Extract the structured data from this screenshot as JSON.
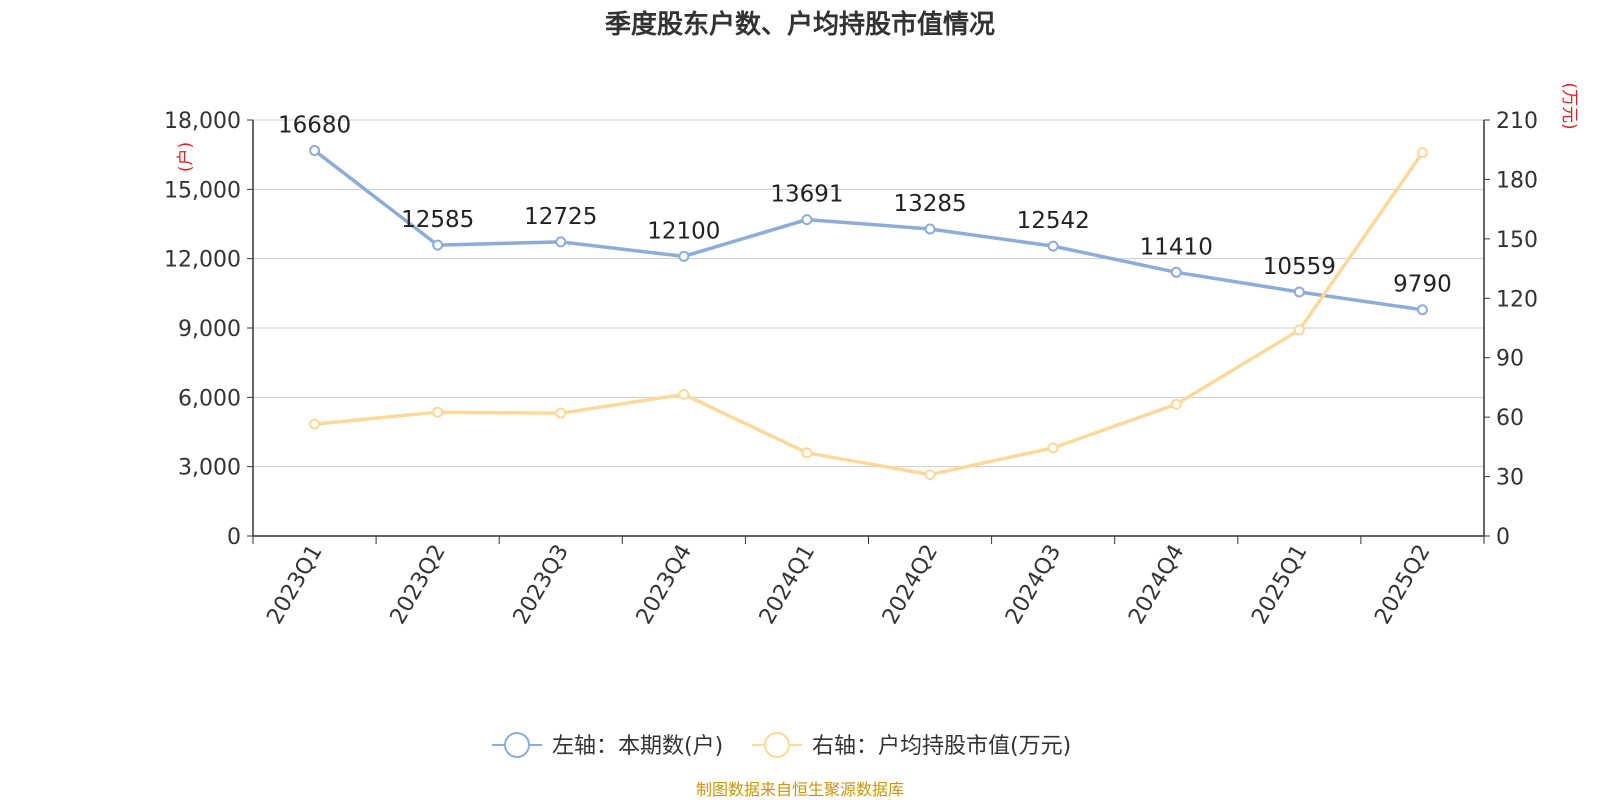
{
  "chart_data": {
    "type": "line",
    "title": "季度股东户数、户均持股市值情况",
    "categories": [
      "2023Q1",
      "2023Q2",
      "2023Q3",
      "2023Q4",
      "2024Q1",
      "2024Q2",
      "2024Q3",
      "2024Q4",
      "2025Q1",
      "2025Q2"
    ],
    "left_axis": {
      "unit_label": "(户)",
      "ylim": [
        0,
        18000
      ],
      "ticks": [
        "0",
        "3,000",
        "6,000",
        "9,000",
        "12,000",
        "15,000",
        "18,000"
      ]
    },
    "right_axis": {
      "unit_label": "(万元)",
      "ylim": [
        0,
        210
      ],
      "ticks": [
        "0",
        "30",
        "60",
        "90",
        "120",
        "150",
        "180",
        "210"
      ]
    },
    "series": [
      {
        "name": "左轴：本期数(户)",
        "axis": "left",
        "color": "#8eacd8",
        "values": [
          16680,
          12585,
          12725,
          12100,
          13691,
          13285,
          12542,
          11410,
          10559,
          9790
        ],
        "labels": [
          "16680",
          "12585",
          "12725",
          "12100",
          "13691",
          "13285",
          "12542",
          "11410",
          "10559",
          "9790"
        ]
      },
      {
        "name": "右轴：户均持股市值(万元)",
        "axis": "right",
        "color": "#fbd99a",
        "values": [
          56.5,
          62.5,
          62.0,
          71.5,
          42.0,
          31.0,
          44.5,
          66.5,
          104.0,
          193.5
        ]
      }
    ],
    "grid": true,
    "legend_position": "bottom-center"
  },
  "colors": {
    "left_axis_unit": "#e02020",
    "right_axis_unit": "#e02020",
    "source": "#c8960a"
  },
  "footer": {
    "source": "制图数据来自恒生聚源数据库"
  }
}
